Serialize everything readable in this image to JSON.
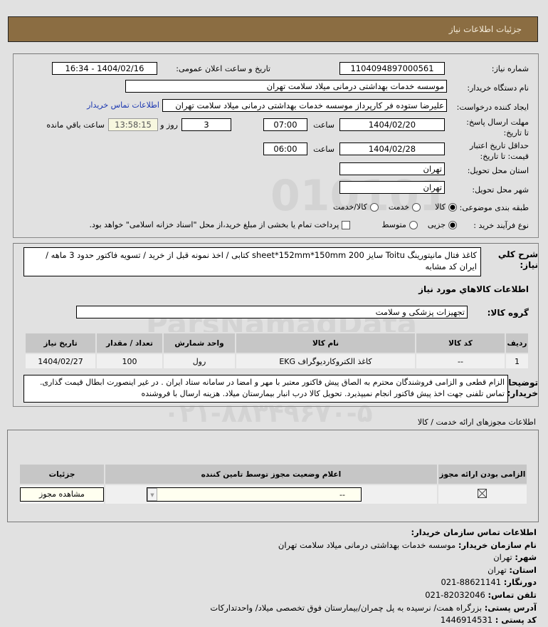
{
  "header": {
    "title": "جزئیات اطلاعات نیاز"
  },
  "form": {
    "need_number_label": "شماره نیاز:",
    "need_number": "1104094897000561",
    "announce_label": "تاریخ و ساعت اعلان عمومی:",
    "announce_value": "1404/02/16 - 16:34",
    "buyer_label": "نام دستگاه خریدار:",
    "buyer_value": "موسسه خدمات بهداشتی درمانی میلاد سلامت تهران",
    "creator_label": "ایجاد کننده درخواست:",
    "creator_value": "علیرضا ستوده فر کارپرداز موسسه خدمات بهداشتی درمانی میلاد سلامت تهران",
    "contact_link": "اطلاعات تماس خریدار",
    "deadline_label": "مهلت ارسال پاسخ: تا تاریخ:",
    "deadline_date": "1404/02/20",
    "time_label": "ساعت",
    "deadline_time": "07:00",
    "days": "3",
    "days_label": "روز و",
    "remaining": "13:58:15",
    "remaining_label": "ساعت باقي مانده",
    "validity_label": "حداقل تاریخ اعتبار قیمت: تا تاریخ:",
    "validity_date": "1404/02/28",
    "validity_time": "06:00",
    "province_label": "استان محل تحویل:",
    "province": "تهران",
    "city_label": "شهر محل تحویل:",
    "city": "تهران",
    "category_label": "طبقه بندی موضوعی:",
    "category_options": [
      "کالا",
      "خدمت",
      "کالا/خدمت"
    ],
    "category_selected": "کالا",
    "process_label": "نوع فرآیند خرید :",
    "process_options": [
      "جزیی",
      "متوسط"
    ],
    "process_selected": "جزیی",
    "payment_text": "پرداخت تمام یا بخشی از مبلغ خرید،از محل \"اسناد خزانه اسلامی\" خواهد بود."
  },
  "details": {
    "summary_label": "شرح کلي نياز:",
    "summary": "کاغذ فتال مانیتورینگ Toitu سایز 200 sheet*152mm*150mm کتابی / اخذ نمونه قبل از خرید / تسویه فاکتور حدود 3 ماهه / ایران کد مشابه",
    "goods_heading": "اطلاعات کالاهاي مورد نياز",
    "group_label": "گروه کالا:",
    "group_value": "تجهیزات پزشکی و سلامت",
    "table": {
      "headers": [
        "ردیف",
        "کد کالا",
        "نام کالا",
        "واحد شمارش",
        "تعداد / مقدار",
        "تاریخ نیاز"
      ],
      "rows": [
        [
          "1",
          "--",
          "کاغذ الکتروکاردیوگراف EKG",
          "رول",
          "100",
          "1404/02/27"
        ]
      ]
    },
    "notes_label": "توضیحات خریدار:",
    "notes": "الزام قطعی و الزامی فروشندگان محترم به الصاق پیش فاکتور معتبر با مهر و امضا در سامانه ستاد ایران . در غیر اینصورت ابطال قیمت گذاری. تماس تلفنی جهت اخذ پیش فاکتور انجام نمیپذیرد. تحویل کالا درب انبار بیمارستان میلاد. هزینه ارسال با فروشنده"
  },
  "licenses": {
    "heading": "اطلاعات مجوزهای ارائه خدمت / کالا",
    "headers": [
      "الزامی بودن ارائه مجوز",
      "اعلام وضعیت مجوز توسط تامین کننده",
      "جزئیات"
    ],
    "select_value": "--",
    "button": "مشاهده مجوز"
  },
  "contact": {
    "heading": "اطلاعات تماس سازمان خریدار:",
    "items": [
      {
        "label": "نام سازمان خریدار:",
        "value": "موسسه خدمات بهداشتی درمانی میلاد سلامت تهران"
      },
      {
        "label": "شهر:",
        "value": "تهران"
      },
      {
        "label": "استان:",
        "value": "تهران"
      },
      {
        "label": "دورنگار:",
        "value": "021-88621141"
      },
      {
        "label": "تلفن تماس:",
        "value": "021-82032046"
      },
      {
        "label": "آدرس پستی:",
        "value": "بزرگراه همت/ نرسیده به پل چمران/بیمارستان فوق تخصصی میلاد/ واحدتدارکات"
      },
      {
        "label": "کد پستی :",
        "value": "1446914531"
      }
    ]
  },
  "watermark": {
    "text": "ParsNamadData",
    "phone": "۰۲۱-۸۸۳۴۹۶۷۰-۵"
  }
}
